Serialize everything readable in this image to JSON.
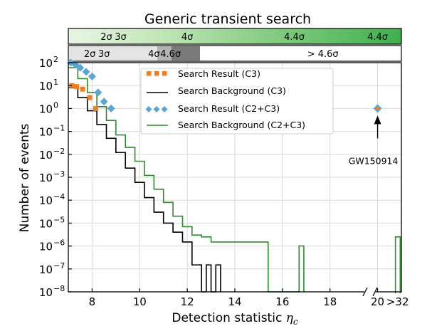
{
  "chart_data": {
    "type": "line",
    "title": "Generic transient search",
    "xlabel": "Detection statistic",
    "xlabel_symbol": "η",
    "xlabel_subscript": "c",
    "ylabel": "Number of events",
    "xlim": [
      7.0,
      21.0
    ],
    "ylim_exponent": [
      -8,
      2
    ],
    "yscale": "log",
    "grid": true,
    "legend_position": "top-center",
    "x_ticks": [
      "8",
      "10",
      "12",
      "14",
      "16",
      "18",
      "20"
    ],
    "x_tick_values": [
      8,
      10,
      12,
      14,
      16,
      18,
      20
    ],
    "x_extra_tick": ">32",
    "y_ticks_exponents": [
      2,
      1,
      0,
      -1,
      -2,
      -3,
      -4,
      -5,
      -6,
      -7,
      -8
    ],
    "colors": {
      "c3_result": "#f07f20",
      "c3_background": "#000000",
      "c2c3_result": "#5aa7d6",
      "c2c3_background": "#2e8b2e"
    },
    "series": [
      {
        "name": "Search Result (C3)",
        "marker": "square",
        "points": [
          [
            7.15,
            10.0
          ],
          [
            7.35,
            9.0
          ],
          [
            7.6,
            7.0
          ],
          [
            7.9,
            3.0
          ],
          [
            8.15,
            1.0
          ]
        ]
      },
      {
        "name": "Search Background (C3)",
        "step": true,
        "x": [
          7.0,
          7.4,
          7.8,
          8.2,
          8.6,
          9.0,
          9.4,
          9.8,
          10.2,
          10.6,
          11.0,
          11.4,
          11.8,
          12.2,
          12.4,
          12.6,
          12.8,
          13.0,
          13.2,
          13.4
        ],
        "y": [
          8.0,
          3.0,
          0.8,
          0.2,
          0.05,
          0.012,
          0.0025,
          0.0006,
          0.00013,
          3e-05,
          1e-05,
          4e-06,
          1.5e-06,
          1.5e-07,
          1.5e-07,
          1e-08,
          1.5e-07,
          1e-08,
          1.5e-07,
          1e-08
        ]
      },
      {
        "name": "Search Result (C2+C3)",
        "marker": "diamond",
        "points": [
          [
            7.1,
            100.0
          ],
          [
            7.3,
            80.0
          ],
          [
            7.5,
            60.0
          ],
          [
            7.75,
            40.0
          ],
          [
            8.0,
            25.0
          ],
          [
            8.25,
            5.0
          ],
          [
            8.5,
            2.0
          ],
          [
            8.8,
            1.0
          ],
          [
            20.0,
            1.0
          ]
        ]
      },
      {
        "name": "Search Background (C2+C3)",
        "step": true,
        "x": [
          7.0,
          7.4,
          7.8,
          8.2,
          8.6,
          9.0,
          9.4,
          9.8,
          10.2,
          10.6,
          11.0,
          11.4,
          11.8,
          12.2,
          12.6,
          13.0,
          15.4,
          15.6,
          16.7,
          16.9
        ],
        "y": [
          60.0,
          20.0,
          5.0,
          1.2,
          0.3,
          0.07,
          0.02,
          0.005,
          0.0012,
          0.0003,
          8e-05,
          2e-05,
          7e-06,
          3e-06,
          2.5e-06,
          1.5e-06,
          1e-08,
          1e-08,
          1e-06,
          1e-08
        ],
        "extra_bin_value": 2.5e-06
      }
    ],
    "annotation": {
      "text": "GW150914",
      "x": 20.0,
      "y": 1.0
    }
  },
  "significance_bands": {
    "c2c3": [
      {
        "label": "2σ",
        "x": 8.6
      },
      {
        "label": "3σ",
        "x": 9.2
      },
      {
        "label": "4σ",
        "x": 12.0
      },
      {
        "label": "4.4σ",
        "x": 16.5
      },
      {
        "label": "4.4σ",
        "x": 20.0
      }
    ],
    "c3": [
      {
        "label": "2σ",
        "x": 7.9
      },
      {
        "label": "3σ",
        "x": 8.5
      },
      {
        "label": "4σ",
        "x": 10.6
      },
      {
        "label": "4.6σ",
        "x": 11.3
      },
      {
        "label": "> 4.6σ",
        "x": 17.7
      }
    ]
  }
}
